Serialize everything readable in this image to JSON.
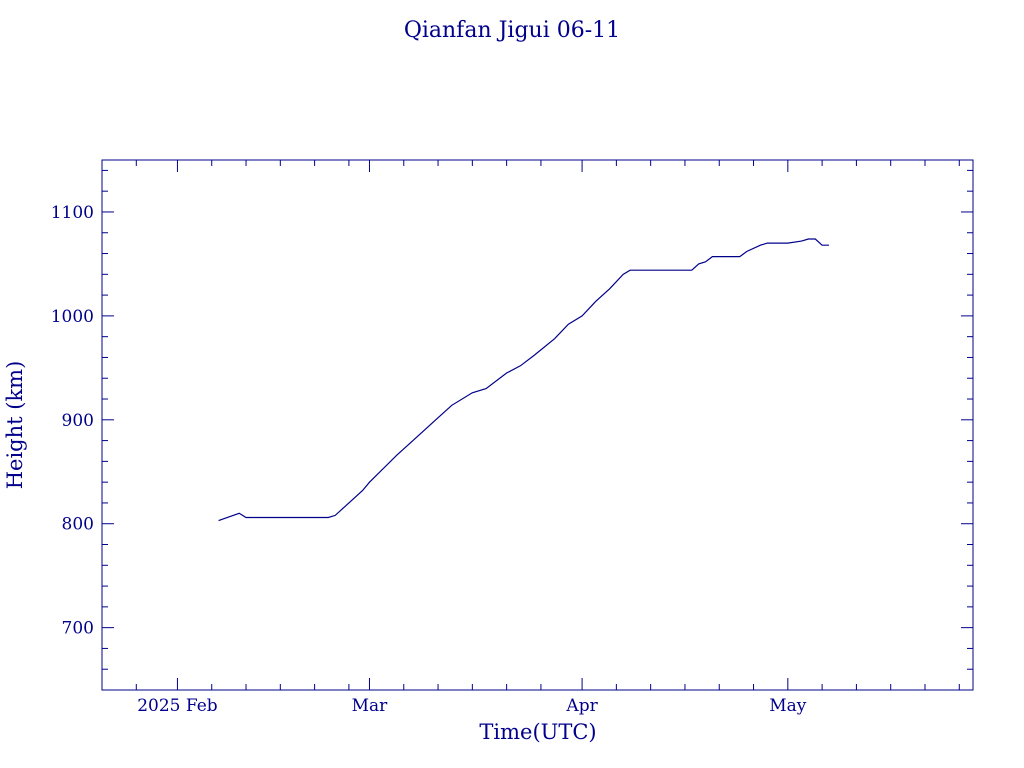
{
  "chart_data": {
    "type": "line",
    "title": "Qianfan Jigui 06-11",
    "xlabel": "Time(UTC)",
    "ylabel": "Height (km)",
    "x_axis": {
      "type": "date",
      "range": [
        "2025-01-21",
        "2025-05-28"
      ],
      "major_ticks": [
        {
          "date": "2025-02-01",
          "label": "2025 Feb"
        },
        {
          "date": "2025-03-01",
          "label": "Mar"
        },
        {
          "date": "2025-04-01",
          "label": "Apr"
        },
        {
          "date": "2025-05-01",
          "label": "May"
        }
      ]
    },
    "y_axis": {
      "range": [
        640,
        1150
      ],
      "major_ticks": [
        700,
        800,
        900,
        1000,
        1100
      ],
      "minor_step": 20
    },
    "grid": false,
    "color": "#00008b",
    "series": [
      {
        "points": [
          {
            "x": "2025-02-07",
            "y": 803
          },
          {
            "x": "2025-02-10",
            "y": 810
          },
          {
            "x": "2025-02-11",
            "y": 806
          },
          {
            "x": "2025-02-23",
            "y": 806
          },
          {
            "x": "2025-02-24",
            "y": 808
          },
          {
            "x": "2025-02-26",
            "y": 820
          },
          {
            "x": "2025-02-28",
            "y": 832
          },
          {
            "x": "2025-03-01",
            "y": 840
          },
          {
            "x": "2025-03-05",
            "y": 866
          },
          {
            "x": "2025-03-07",
            "y": 878
          },
          {
            "x": "2025-03-11",
            "y": 902
          },
          {
            "x": "2025-03-13",
            "y": 914
          },
          {
            "x": "2025-03-16",
            "y": 926
          },
          {
            "x": "2025-03-18",
            "y": 930
          },
          {
            "x": "2025-03-21",
            "y": 945
          },
          {
            "x": "2025-03-23",
            "y": 952
          },
          {
            "x": "2025-03-25",
            "y": 962
          },
          {
            "x": "2025-03-28",
            "y": 978
          },
          {
            "x": "2025-03-30",
            "y": 992
          },
          {
            "x": "2025-04-01",
            "y": 1000
          },
          {
            "x": "2025-04-03",
            "y": 1014
          },
          {
            "x": "2025-04-05",
            "y": 1026
          },
          {
            "x": "2025-04-07",
            "y": 1040
          },
          {
            "x": "2025-04-08",
            "y": 1044
          },
          {
            "x": "2025-04-17",
            "y": 1044
          },
          {
            "x": "2025-04-18",
            "y": 1050
          },
          {
            "x": "2025-04-19",
            "y": 1052
          },
          {
            "x": "2025-04-20",
            "y": 1057
          },
          {
            "x": "2025-04-24",
            "y": 1057
          },
          {
            "x": "2025-04-25",
            "y": 1062
          },
          {
            "x": "2025-04-27",
            "y": 1068
          },
          {
            "x": "2025-04-28",
            "y": 1070
          },
          {
            "x": "2025-05-01",
            "y": 1070
          },
          {
            "x": "2025-05-03",
            "y": 1072
          },
          {
            "x": "2025-05-04",
            "y": 1074
          },
          {
            "x": "2025-05-05",
            "y": 1074
          },
          {
            "x": "2025-05-06",
            "y": 1068
          },
          {
            "x": "2025-05-07",
            "y": 1068
          }
        ]
      }
    ]
  }
}
